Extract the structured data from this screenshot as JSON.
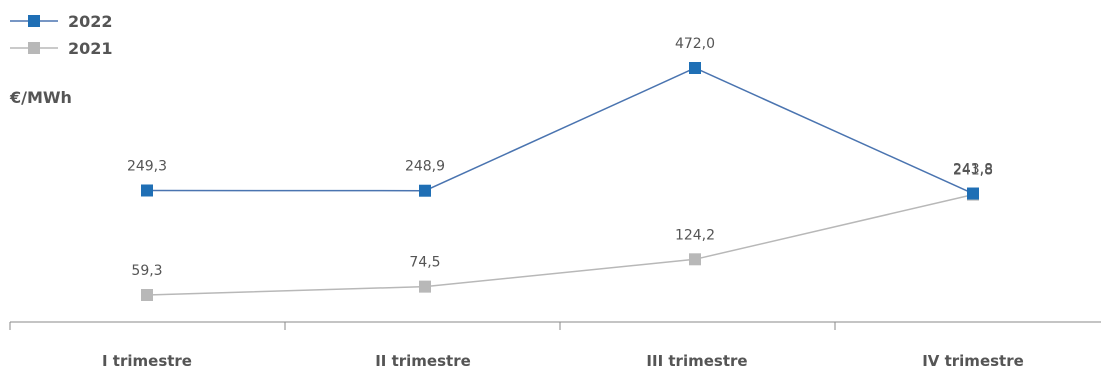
{
  "chart_data": {
    "type": "line",
    "unit_label": "€/MWh",
    "categories": [
      "I trimestre",
      "II trimestre",
      "III trimestre",
      "IV trimestre"
    ],
    "series": [
      {
        "name": "2022",
        "color": "#1f6fb5",
        "line_color": "#4a74b0",
        "values": [
          249.3,
          248.9,
          472.0,
          243.8
        ],
        "labels": [
          "249,3",
          "248,9",
          "472,0",
          "243,8"
        ]
      },
      {
        "name": "2021",
        "color": "#b8b8b8",
        "line_color": "#b8b8b8",
        "values": [
          59.3,
          74.5,
          124.2,
          241.8
        ],
        "labels": [
          "59,3",
          "74,5",
          "124,2",
          "241,8"
        ]
      }
    ],
    "legend_position": "top-left",
    "grid": false
  }
}
